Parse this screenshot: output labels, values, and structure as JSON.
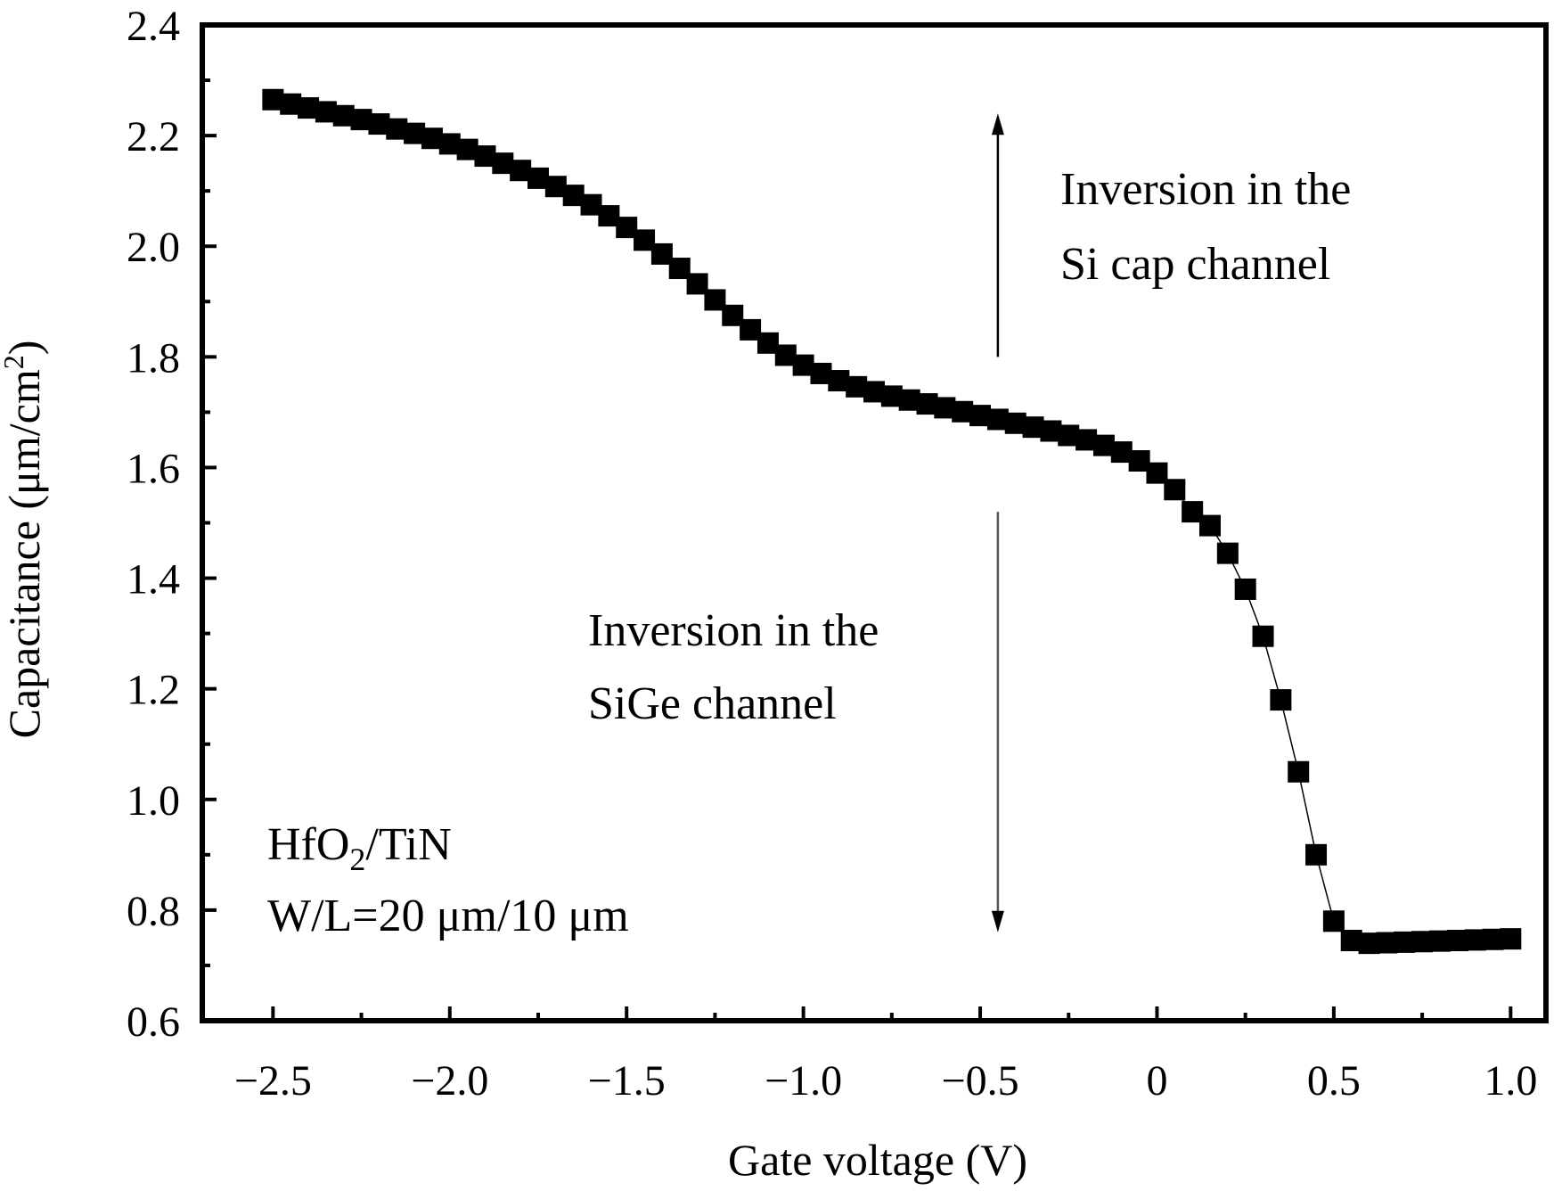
{
  "chart_data": {
    "type": "scatter",
    "xlabel": "Gate voltage (V)",
    "ylabel_main": "Capacitance (μm/cm",
    "ylabel_sup": "2",
    "ylabel_close": ")",
    "xlim": [
      -2.7,
      1.1
    ],
    "ylim": [
      0.6,
      2.4
    ],
    "x_ticks": [
      -2.5,
      -2.0,
      -1.5,
      -1.0,
      -0.5,
      0,
      0.5,
      1.0
    ],
    "x_tick_labels": [
      "−2.5",
      "−2.0",
      "−1.5",
      "−1.0",
      "−0.5",
      "0",
      "0.5",
      "1.0"
    ],
    "y_ticks": [
      0.6,
      0.8,
      1.0,
      1.2,
      1.4,
      1.6,
      1.8,
      2.0,
      2.2,
      2.4
    ],
    "y_tick_labels": [
      "0.6",
      "0.8",
      "1.0",
      "1.2",
      "1.4",
      "1.6",
      "1.8",
      "2.0",
      "2.2",
      "2.4"
    ],
    "grid": false,
    "marker": "square",
    "marker_color": "#000000",
    "x": [
      -2.5,
      -2.45,
      -2.4,
      -2.35,
      -2.3,
      -2.25,
      -2.2,
      -2.15,
      -2.1,
      -2.05,
      -2.0,
      -1.95,
      -1.9,
      -1.85,
      -1.8,
      -1.75,
      -1.7,
      -1.65,
      -1.6,
      -1.55,
      -1.5,
      -1.45,
      -1.4,
      -1.35,
      -1.3,
      -1.25,
      -1.2,
      -1.15,
      -1.1,
      -1.05,
      -1.0,
      -0.95,
      -0.9,
      -0.85,
      -0.8,
      -0.75,
      -0.7,
      -0.65,
      -0.6,
      -0.55,
      -0.5,
      -0.45,
      -0.4,
      -0.35,
      -0.3,
      -0.25,
      -0.2,
      -0.15,
      -0.1,
      -0.05,
      0.0,
      0.05,
      0.1,
      0.15,
      0.2,
      0.25,
      0.3,
      0.35,
      0.4,
      0.45,
      0.5,
      0.55,
      0.6,
      0.65,
      0.7,
      0.75,
      0.8,
      0.85,
      0.9,
      0.95,
      1.0
    ],
    "y": [
      2.265,
      2.257,
      2.25,
      2.243,
      2.236,
      2.229,
      2.221,
      2.212,
      2.204,
      2.195,
      2.185,
      2.175,
      2.163,
      2.15,
      2.137,
      2.123,
      2.108,
      2.092,
      2.075,
      2.055,
      2.034,
      2.011,
      1.986,
      1.96,
      1.932,
      1.903,
      1.875,
      1.849,
      1.825,
      1.803,
      1.785,
      1.77,
      1.757,
      1.746,
      1.737,
      1.729,
      1.722,
      1.715,
      1.708,
      1.701,
      1.694,
      1.687,
      1.68,
      1.673,
      1.666,
      1.658,
      1.65,
      1.64,
      1.628,
      1.612,
      1.59,
      1.56,
      1.52,
      1.495,
      1.445,
      1.38,
      1.295,
      1.18,
      1.05,
      0.9,
      0.78,
      0.745,
      0.74,
      0.741,
      0.742,
      0.743,
      0.744,
      0.745,
      0.746,
      0.747,
      0.748
    ],
    "annotations": {
      "si_cap_line1": "Inversion in the",
      "si_cap_line2": "Si cap channel",
      "sige_line1": "Inversion in the",
      "sige_line2": "SiGe channel",
      "stack_main": "HfO",
      "stack_sub": "2",
      "stack_rest": "/TiN",
      "geometry": "W/L=20 μm/10 μm"
    },
    "arrow_x": -0.45,
    "arrow_up": [
      1.8,
      2.24
    ],
    "arrow_down": [
      1.52,
      0.76
    ]
  }
}
